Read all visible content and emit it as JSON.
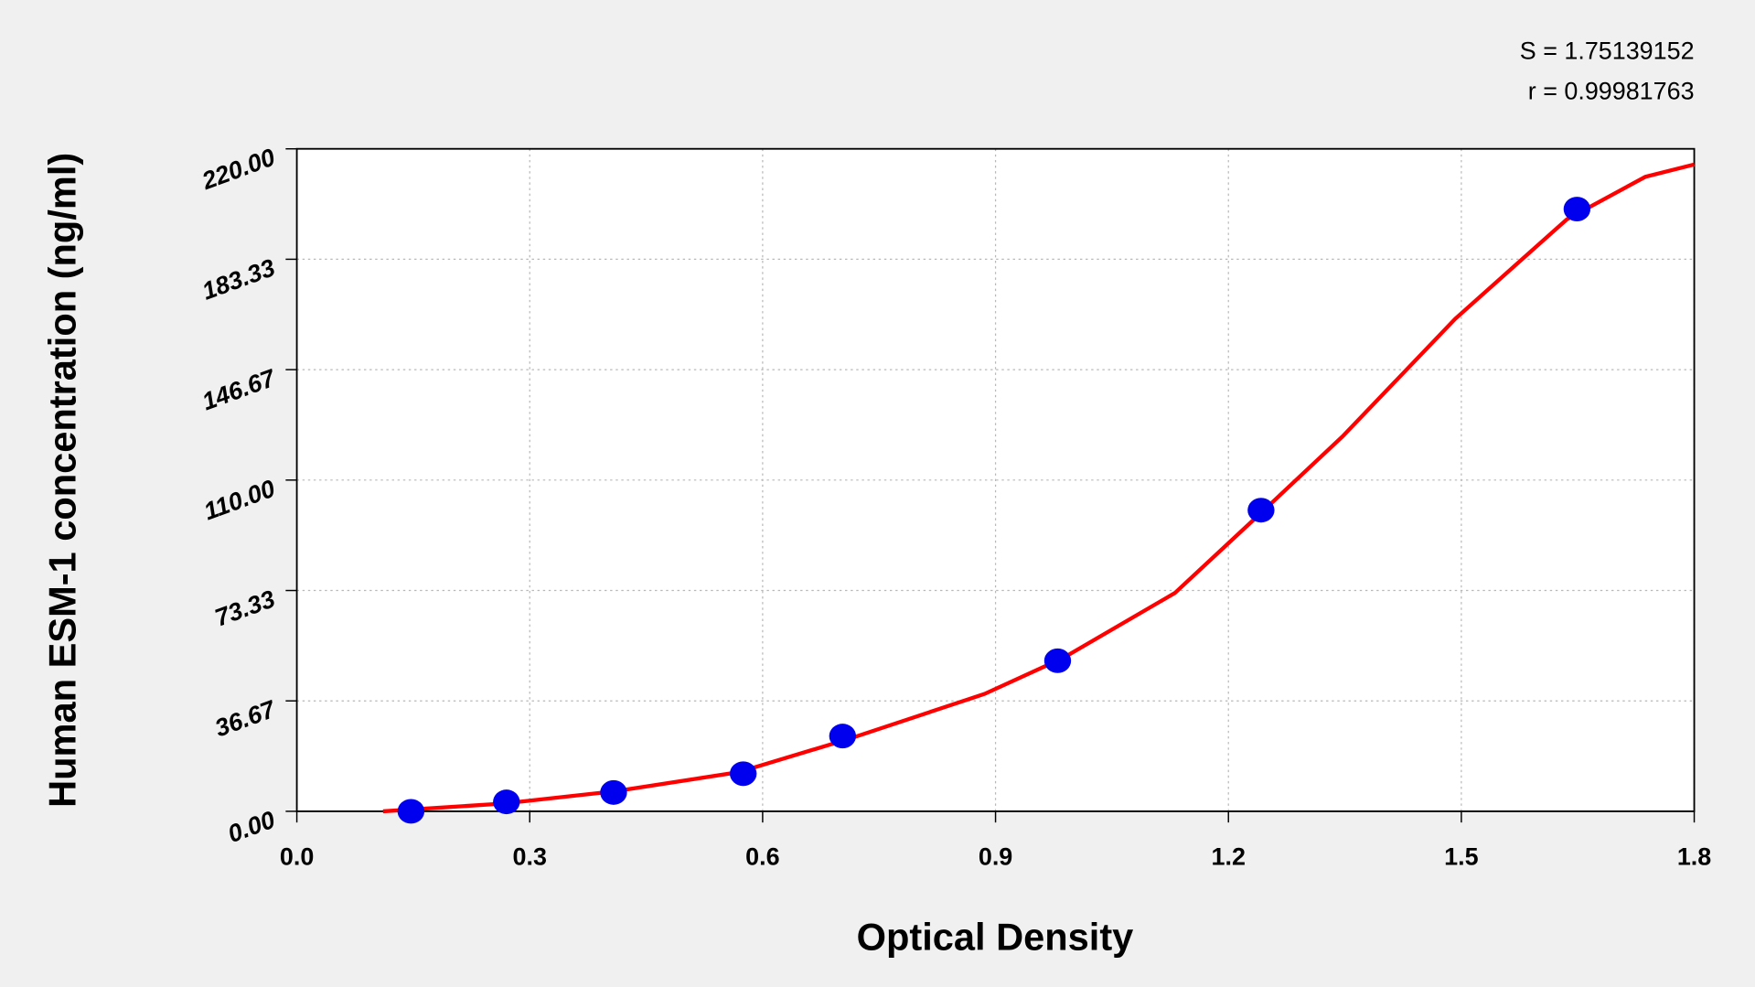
{
  "chart_data": {
    "type": "scatter",
    "xlabel": "Optical Density",
    "ylabel": "Human ESM-1 concentration (ng/ml)",
    "annotations": [
      "S = 1.75139152",
      "r = 0.99981763"
    ],
    "xlim": [
      0,
      1.8
    ],
    "ylim": [
      0,
      220
    ],
    "xticks": [
      {
        "value": 0,
        "label": "0.0"
      },
      0.3,
      0.6,
      0.9,
      1.2,
      1.5,
      1.8
    ],
    "yticks": [
      {
        "value": 0,
        "label": "0.00"
      },
      36.67,
      {
        "value": 73.33,
        "label": "73.33"
      },
      {
        "value": 110,
        "label": "110.00"
      },
      146.67,
      183.33,
      {
        "value": 220,
        "label": "220.00"
      }
    ],
    "grid": true,
    "series": [
      {
        "kind": "points",
        "color": "#0000ee",
        "x": [
          0.147,
          0.27,
          0.408,
          0.575,
          0.703,
          0.98,
          1.242,
          1.649
        ],
        "values": [
          0,
          3.13,
          6.25,
          12.5,
          25,
          50,
          100,
          200
        ]
      },
      {
        "kind": "curve",
        "color": "#ff0000",
        "x": [
          0.111,
          0.267,
          0.411,
          0.569,
          0.713,
          0.886,
          0.987,
          1.131,
          1.247,
          1.347,
          1.492,
          1.636,
          1.737,
          1.8
        ],
        "values": [
          0,
          2.6,
          6.7,
          13,
          24.2,
          39,
          50.9,
          72.5,
          100.3,
          124.5,
          163.5,
          196.6,
          210.7,
          214.8
        ]
      }
    ]
  }
}
